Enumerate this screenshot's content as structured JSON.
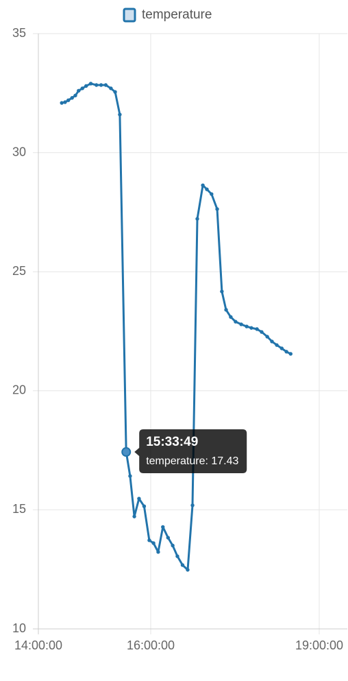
{
  "chart_data": {
    "type": "line",
    "series": [
      {
        "name": "temperature",
        "color": "#2274ab",
        "values": [
          32.09,
          32.12,
          32.2,
          32.3,
          32.4,
          32.6,
          32.7,
          32.8,
          32.9,
          32.84,
          32.84,
          32.84,
          32.7,
          32.55,
          31.6,
          17.43,
          16.42,
          14.72,
          15.47,
          15.15,
          13.72,
          13.6,
          13.23,
          14.28,
          13.83,
          13.5,
          13.05,
          12.68,
          12.48,
          15.19,
          27.22,
          28.63,
          28.46,
          28.26,
          27.63,
          24.17,
          23.4,
          23.1,
          22.9,
          22.79,
          22.7,
          22.64,
          22.59,
          22.47,
          22.27,
          22.07,
          21.92,
          21.78,
          21.64,
          21.55
        ]
      }
    ],
    "x": [
      "14:25:00",
      "14:28:30",
      "14:32:00",
      "14:36:00",
      "14:39:30",
      "14:43:00",
      "14:47:00",
      "14:51:00",
      "14:56:00",
      "15:02:00",
      "15:07:00",
      "15:12:00",
      "15:17:30",
      "15:22:00",
      "15:27:00",
      "15:33:49",
      "15:38:00",
      "15:42:30",
      "15:47:30",
      "15:53:00",
      "15:58:30",
      "16:03:00",
      "16:08:00",
      "16:13:00",
      "16:18:30",
      "16:23:30",
      "16:28:30",
      "16:34:00",
      "16:39:30",
      "16:44:40",
      "16:49:45",
      "16:55:40",
      "17:00:00",
      "17:05:00",
      "17:11:00",
      "17:16:00",
      "17:20:30",
      "17:25:30",
      "17:30:40",
      "17:36:40",
      "17:42:30",
      "17:47:30",
      "17:53:30",
      "17:58:30",
      "18:04:30",
      "18:09:30",
      "18:14:40",
      "18:20:00",
      "18:25:00",
      "18:29:30"
    ],
    "xlim": [
      "14:00:00",
      "19:30:00"
    ],
    "xticks": [
      "14:00:00",
      "16:00:00",
      "19:00:00"
    ],
    "ylim": [
      10,
      35
    ],
    "yticks": [
      10,
      15,
      20,
      25,
      30,
      35
    ],
    "grid": true,
    "legend": "top",
    "tooltip": {
      "title": "15:33:49",
      "label": "temperature: 17.43"
    }
  }
}
